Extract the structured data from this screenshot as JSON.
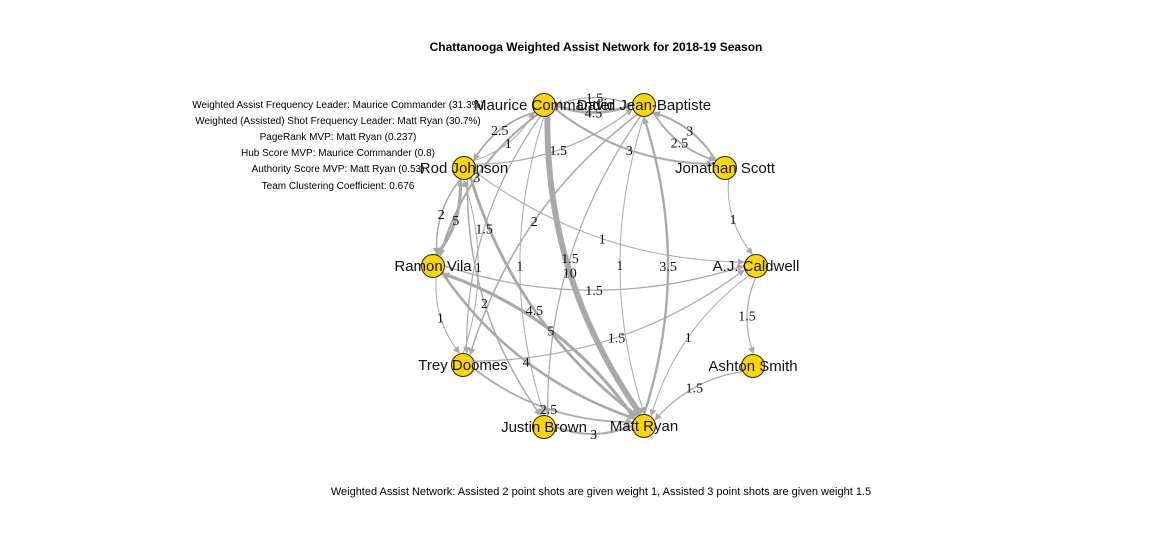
{
  "title": "Chattanooga Weighted Assist Network for 2018-19 Season",
  "stats": [
    "Weighted Assist Frequency Leader: Maurice Commander (31.3%)",
    "Weighted (Assisted) Shot Frequency Leader: Matt Ryan (30.7%)",
    "PageRank MVP: Matt Ryan (0.237)",
    "Hub Score MVP: Maurice Commander (0.8)",
    "Authority Score MVP: Matt Ryan (0.53)",
    "Team Clustering Coefficient: 0.676"
  ],
  "caption": "Weighted Assist Network: Assisted 2 point shots are given weight 1, Assisted 3 point shots are given weight 1.5",
  "colors": {
    "node": "#ffd700",
    "edge": "#a9a9a9"
  },
  "nodes": [
    {
      "id": "mc",
      "label": "Maurice Commander"
    },
    {
      "id": "djb",
      "label": "David Jean-Baptiste"
    },
    {
      "id": "js",
      "label": "Jonathan Scott"
    },
    {
      "id": "ajc",
      "label": "A.J. Caldwell"
    },
    {
      "id": "as",
      "label": "Ashton Smith"
    },
    {
      "id": "mr",
      "label": "Matt Ryan"
    },
    {
      "id": "jb",
      "label": "Justin Brown"
    },
    {
      "id": "td",
      "label": "Trey Doomes"
    },
    {
      "id": "rv",
      "label": "Ramon Vila"
    },
    {
      "id": "rj",
      "label": "Rod Johnson"
    }
  ],
  "edges": [
    {
      "from": "mc",
      "to": "mr",
      "weight": 10
    },
    {
      "from": "mc",
      "to": "djb",
      "weight": 4.5
    },
    {
      "from": "djb",
      "to": "mc",
      "weight": 1.5
    },
    {
      "from": "mc",
      "to": "rj",
      "weight": 2.5
    },
    {
      "from": "rj",
      "to": "mc",
      "weight": 1
    },
    {
      "from": "rj",
      "to": "djb",
      "weight": 1.5
    },
    {
      "from": "mc",
      "to": "js",
      "weight": 3
    },
    {
      "from": "djb",
      "to": "js",
      "weight": 2.5
    },
    {
      "from": "js",
      "to": "djb",
      "weight": 3
    },
    {
      "from": "mc",
      "to": "rv",
      "weight": 3
    },
    {
      "from": "rj",
      "to": "rv",
      "weight": 2
    },
    {
      "from": "rv",
      "to": "rj",
      "weight": 5
    },
    {
      "from": "rj",
      "to": "mr",
      "weight": 4.5
    },
    {
      "from": "rv",
      "to": "mr",
      "weight": 4
    },
    {
      "from": "rv",
      "to": "td",
      "weight": 1
    },
    {
      "from": "td",
      "to": "rj",
      "weight": 1
    },
    {
      "from": "mr",
      "to": "rv",
      "weight": 5
    },
    {
      "from": "td",
      "to": "mr",
      "weight": 2.5
    },
    {
      "from": "jb",
      "to": "mr",
      "weight": 3
    },
    {
      "from": "mc",
      "to": "td",
      "weight": 1.5
    },
    {
      "from": "djb",
      "to": "mr",
      "weight": 1
    },
    {
      "from": "djb",
      "to": "jb",
      "weight": 1.5
    },
    {
      "from": "djb",
      "to": "td",
      "weight": 2
    },
    {
      "from": "rj",
      "to": "ajc",
      "weight": 1
    },
    {
      "from": "ajc",
      "to": "mr",
      "weight": 1
    },
    {
      "from": "td",
      "to": "ajc",
      "weight": 1.5
    },
    {
      "from": "rv",
      "to": "ajc",
      "weight": 1.5
    },
    {
      "from": "ajc",
      "to": "as",
      "weight": 1.5
    },
    {
      "from": "as",
      "to": "mr",
      "weight": 1.5
    },
    {
      "from": "mc",
      "to": "jb",
      "weight": 1
    },
    {
      "from": "rj",
      "to": "jb",
      "weight": 2
    },
    {
      "from": "js",
      "to": "ajc",
      "weight": 1
    },
    {
      "from": "mr",
      "to": "djb",
      "weight": 3.5
    }
  ]
}
